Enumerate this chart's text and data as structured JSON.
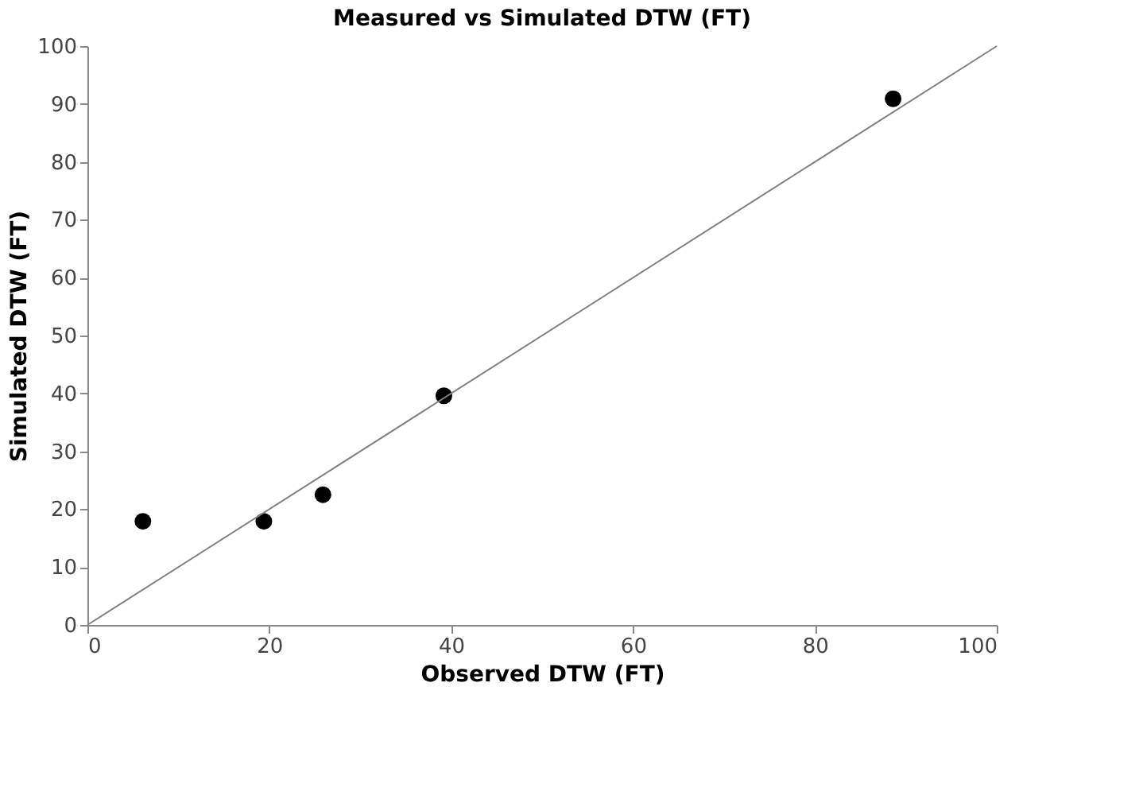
{
  "chart_data": {
    "type": "scatter",
    "title": "Measured vs Simulated DTW (FT)",
    "xlabel": "Observed DTW (FT)",
    "ylabel": "Simulated DTW (FT)",
    "xlim": [
      0,
      100
    ],
    "xticks": [
      0,
      20,
      40,
      60,
      80,
      100
    ],
    "ylim": [
      0,
      100
    ],
    "yticks": [
      0,
      10,
      20,
      30,
      40,
      50,
      60,
      70,
      80,
      90,
      100
    ],
    "grid": false,
    "marker": "circle",
    "series": [
      {
        "color": "#000000",
        "x": [
          6.1,
          19.4,
          25.9,
          39.2,
          88.6
        ],
        "values": [
          17.9,
          17.9,
          22.5,
          39.6,
          90.9
        ]
      },
      {
        "type": "line",
        "color": "#808080",
        "x": [
          0,
          100
        ],
        "values": [
          0,
          100
        ],
        "line_style": "solid",
        "marker": "none"
      }
    ]
  }
}
